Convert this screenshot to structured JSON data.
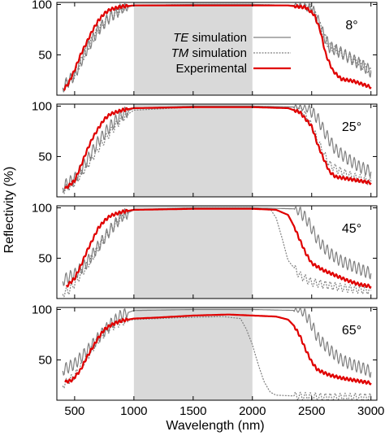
{
  "chart_data": {
    "type": "line",
    "xlabel": "Wavelength (nm)",
    "ylabel": "Reflectivity (%)",
    "xlim": [
      350,
      3050
    ],
    "ylim": [
      10,
      102
    ],
    "x_ticks": [
      "500",
      "1000",
      "1500",
      "2000",
      "2500",
      "3000"
    ],
    "y_ticks": [
      "50",
      "100"
    ],
    "shaded_band": {
      "x": [
        1000,
        2000
      ],
      "color": "#d9d9d9"
    },
    "legend": {
      "entries": [
        {
          "emph": "TE",
          "text": " simulation",
          "color": "#808080",
          "style": "solid"
        },
        {
          "emph": "TM",
          "text": " simulation",
          "color": "#808080",
          "style": "dashed"
        },
        {
          "emph": "",
          "text": "Experimental",
          "color": "#e00000",
          "style": "solid"
        }
      ]
    },
    "series_styles": {
      "TE": {
        "color": "#808080",
        "dash": "none"
      },
      "TM": {
        "color": "#808080",
        "dash": "2,1.5"
      },
      "Experimental": {
        "color": "#e00000",
        "dash": "none"
      }
    },
    "panels": [
      {
        "angle": "8°",
        "series": {
          "TE": [
            [
              400,
              18
            ],
            [
              500,
              30
            ],
            [
              600,
              55
            ],
            [
              700,
              75
            ],
            [
              800,
              88
            ],
            [
              900,
              96
            ],
            [
              1000,
              99
            ],
            [
              1500,
              100
            ],
            [
              2000,
              100
            ],
            [
              2400,
              99
            ],
            [
              2500,
              96
            ],
            [
              2550,
              85
            ],
            [
              2600,
              70
            ],
            [
              2650,
              58
            ],
            [
              2750,
              52
            ],
            [
              2850,
              45
            ],
            [
              2950,
              38
            ],
            [
              3000,
              33
            ]
          ],
          "TM": [
            [
              400,
              18
            ],
            [
              500,
              30
            ],
            [
              600,
              55
            ],
            [
              700,
              75
            ],
            [
              800,
              88
            ],
            [
              900,
              96
            ],
            [
              1000,
              99
            ],
            [
              1500,
              100
            ],
            [
              2000,
              100
            ],
            [
              2400,
              99
            ],
            [
              2500,
              96
            ],
            [
              2550,
              85
            ],
            [
              2600,
              70
            ],
            [
              2650,
              58
            ],
            [
              2750,
              52
            ],
            [
              2850,
              45
            ],
            [
              2950,
              38
            ],
            [
              3000,
              33
            ]
          ],
          "Experimental": [
            [
              410,
              16
            ],
            [
              450,
              22
            ],
            [
              500,
              35
            ],
            [
              550,
              50
            ],
            [
              600,
              62
            ],
            [
              650,
              74
            ],
            [
              700,
              84
            ],
            [
              750,
              91
            ],
            [
              800,
              95
            ],
            [
              900,
              98
            ],
            [
              1000,
              99
            ],
            [
              1500,
              99
            ],
            [
              2000,
              99
            ],
            [
              2300,
              99
            ],
            [
              2450,
              97
            ],
            [
              2520,
              90
            ],
            [
              2570,
              75
            ],
            [
              2620,
              50
            ],
            [
              2680,
              34
            ],
            [
              2750,
              26
            ],
            [
              2850,
              24
            ],
            [
              2950,
              20
            ],
            [
              3000,
              18
            ]
          ]
        }
      },
      {
        "angle": "25°",
        "series": {
          "TE": [
            [
              400,
              20
            ],
            [
              500,
              28
            ],
            [
              600,
              45
            ],
            [
              700,
              65
            ],
            [
              800,
              80
            ],
            [
              900,
              92
            ],
            [
              1000,
              98
            ],
            [
              1500,
              100
            ],
            [
              2000,
              100
            ],
            [
              2400,
              99
            ],
            [
              2480,
              97
            ],
            [
              2550,
              88
            ],
            [
              2620,
              72
            ],
            [
              2700,
              57
            ],
            [
              2800,
              48
            ],
            [
              2900,
              40
            ],
            [
              3000,
              35
            ]
          ],
          "TM": [
            [
              400,
              16
            ],
            [
              500,
              24
            ],
            [
              600,
              40
            ],
            [
              700,
              58
            ],
            [
              800,
              74
            ],
            [
              900,
              88
            ],
            [
              1000,
              96
            ],
            [
              1500,
              99
            ],
            [
              2000,
              100
            ],
            [
              2350,
              99
            ],
            [
              2420,
              96
            ],
            [
              2500,
              80
            ],
            [
              2580,
              58
            ],
            [
              2650,
              42
            ],
            [
              2750,
              35
            ],
            [
              2850,
              30
            ],
            [
              2950,
              27
            ],
            [
              3000,
              25
            ]
          ],
          "Experimental": [
            [
              420,
              18
            ],
            [
              500,
              26
            ],
            [
              550,
              40
            ],
            [
              600,
              55
            ],
            [
              650,
              68
            ],
            [
              700,
              78
            ],
            [
              750,
              87
            ],
            [
              800,
              92
            ],
            [
              900,
              96
            ],
            [
              1000,
              98
            ],
            [
              1500,
              99
            ],
            [
              2000,
              99
            ],
            [
              2300,
              98
            ],
            [
              2400,
              94
            ],
            [
              2500,
              80
            ],
            [
              2550,
              62
            ],
            [
              2600,
              48
            ],
            [
              2650,
              35
            ],
            [
              2700,
              30
            ],
            [
              2800,
              28
            ],
            [
              2900,
              26
            ],
            [
              3000,
              24
            ]
          ]
        }
      },
      {
        "angle": "45°",
        "series": {
          "TE": [
            [
              400,
              28
            ],
            [
              500,
              34
            ],
            [
              600,
              45
            ],
            [
              700,
              62
            ],
            [
              800,
              78
            ],
            [
              900,
              92
            ],
            [
              1000,
              98
            ],
            [
              1500,
              100
            ],
            [
              2000,
              100
            ],
            [
              2350,
              99
            ],
            [
              2400,
              96
            ],
            [
              2450,
              90
            ],
            [
              2500,
              80
            ],
            [
              2550,
              68
            ],
            [
              2650,
              55
            ],
            [
              2750,
              47
            ],
            [
              2850,
              42
            ],
            [
              2950,
              37
            ],
            [
              3000,
              35
            ]
          ],
          "TM": [
            [
              400,
              15
            ],
            [
              450,
              18
            ],
            [
              500,
              25
            ],
            [
              600,
              42
            ],
            [
              700,
              60
            ],
            [
              800,
              78
            ],
            [
              900,
              92
            ],
            [
              1000,
              98
            ],
            [
              1500,
              100
            ],
            [
              2000,
              100
            ],
            [
              2150,
              99
            ],
            [
              2200,
              90
            ],
            [
              2250,
              70
            ],
            [
              2300,
              48
            ],
            [
              2400,
              33
            ],
            [
              2500,
              26
            ],
            [
              2600,
              24
            ],
            [
              2700,
              22
            ],
            [
              2800,
              20
            ],
            [
              2900,
              19
            ],
            [
              3000,
              18
            ]
          ],
          "Experimental": [
            [
              430,
              22
            ],
            [
              500,
              30
            ],
            [
              550,
              42
            ],
            [
              600,
              56
            ],
            [
              650,
              68
            ],
            [
              700,
              80
            ],
            [
              750,
              87
            ],
            [
              800,
              92
            ],
            [
              900,
              96
            ],
            [
              1000,
              98
            ],
            [
              1500,
              99
            ],
            [
              2000,
              99
            ],
            [
              2200,
              98
            ],
            [
              2300,
              93
            ],
            [
              2350,
              82
            ],
            [
              2400,
              68
            ],
            [
              2450,
              55
            ],
            [
              2500,
              45
            ],
            [
              2600,
              38
            ],
            [
              2700,
              33
            ],
            [
              2800,
              28
            ],
            [
              2900,
              24
            ],
            [
              3000,
              22
            ]
          ]
        }
      },
      {
        "angle": "65°",
        "series": {
          "TE": [
            [
              400,
              40
            ],
            [
              500,
              46
            ],
            [
              600,
              58
            ],
            [
              700,
              72
            ],
            [
              800,
              85
            ],
            [
              900,
              95
            ],
            [
              1000,
              99
            ],
            [
              1500,
              100
            ],
            [
              2000,
              100
            ],
            [
              2400,
              99
            ],
            [
              2450,
              95
            ],
            [
              2500,
              85
            ],
            [
              2550,
              72
            ],
            [
              2650,
              60
            ],
            [
              2750,
              50
            ],
            [
              2850,
              45
            ],
            [
              2950,
              41
            ],
            [
              3000,
              38
            ]
          ],
          "TM": [
            [
              400,
              25
            ],
            [
              500,
              34
            ],
            [
              600,
              52
            ],
            [
              700,
              70
            ],
            [
              800,
              82
            ],
            [
              900,
              88
            ],
            [
              1000,
              90
            ],
            [
              1400,
              92
            ],
            [
              1750,
              93
            ],
            [
              1900,
              91
            ],
            [
              1950,
              80
            ],
            [
              2000,
              65
            ],
            [
              2050,
              45
            ],
            [
              2100,
              28
            ],
            [
              2150,
              18
            ],
            [
              2200,
              15
            ],
            [
              2400,
              14
            ],
            [
              2600,
              13
            ],
            [
              2800,
              13
            ],
            [
              3000,
              13
            ]
          ],
          "Experimental": [
            [
              420,
              28
            ],
            [
              480,
              30
            ],
            [
              550,
              40
            ],
            [
              600,
              52
            ],
            [
              650,
              62
            ],
            [
              700,
              72
            ],
            [
              750,
              80
            ],
            [
              800,
              84
            ],
            [
              850,
              87
            ],
            [
              900,
              89
            ],
            [
              1000,
              91
            ],
            [
              1200,
              92
            ],
            [
              1500,
              94
            ],
            [
              1800,
              95
            ],
            [
              2000,
              94
            ],
            [
              2200,
              93
            ],
            [
              2300,
              90
            ],
            [
              2350,
              84
            ],
            [
              2400,
              74
            ],
            [
              2450,
              60
            ],
            [
              2500,
              48
            ],
            [
              2550,
              40
            ],
            [
              2650,
              35
            ],
            [
              2750,
              32
            ],
            [
              2850,
              30
            ],
            [
              2950,
              28
            ],
            [
              3000,
              27
            ]
          ]
        }
      }
    ]
  }
}
